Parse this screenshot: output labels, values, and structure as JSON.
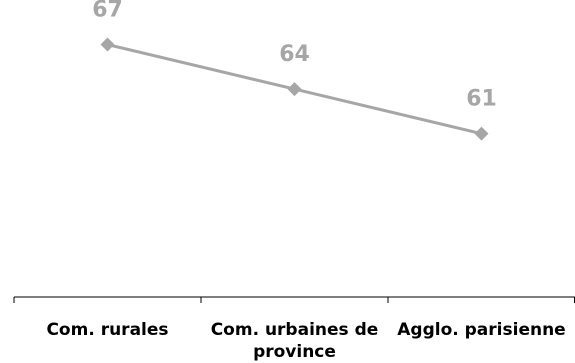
{
  "chart_data": {
    "type": "line",
    "categories": [
      "Com. rurales",
      "Com. urbaines de province",
      "Agglo. parisienne"
    ],
    "tick_label_lines": [
      [
        "Com. rurales"
      ],
      [
        "Com. urbaines de",
        "province"
      ],
      [
        "Agglo. parisienne"
      ]
    ],
    "series": [
      {
        "values": [
          67,
          64,
          61
        ],
        "color": "#a6a6a6",
        "marker": "diamond"
      }
    ],
    "data_labels": [
      "67",
      "64",
      "61"
    ],
    "data_label_color": "#a6a6a6",
    "axis_color": "#000000",
    "ylim": [
      50,
      70
    ],
    "grid": false,
    "legend": "none",
    "title": "",
    "xlabel": "",
    "ylabel": ""
  }
}
